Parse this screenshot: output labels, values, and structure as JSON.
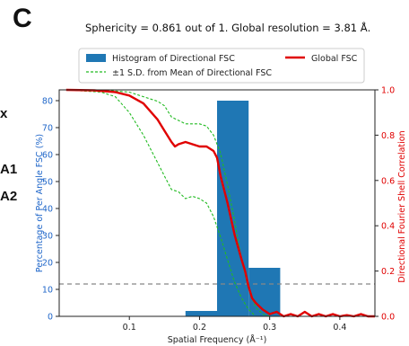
{
  "panel_letter": "C",
  "edge_labels": [
    "x",
    "A1",
    "A2"
  ],
  "colors": {
    "histogram": "#1f77b4",
    "global_fsc": "#e00000",
    "sd_band": "#22bb22",
    "threshold": "#888888",
    "left_axis": "#1f66c9",
    "right_axis": "#e00000"
  },
  "chart_data": {
    "type": "bar",
    "title": "Sphericity = 0.861 out of 1. Global resolution = 3.81 Å.",
    "xlabel": "Spatial Frequency (Å⁻¹)",
    "ylabel": "Percentage of Per Angle FSC (%)",
    "y2label": "Directional Fourier Shell Correlation",
    "xlim": [
      0.0,
      0.45
    ],
    "ylim": [
      0,
      84
    ],
    "y2lim": [
      0,
      1.0
    ],
    "x_ticks": [
      "0.1",
      "0.2",
      "0.3",
      "0.4"
    ],
    "x_tick_values": [
      0.1,
      0.2,
      0.3,
      0.4
    ],
    "y_ticks": [
      "0",
      "10",
      "20",
      "30",
      "40",
      "50",
      "60",
      "70",
      "80"
    ],
    "y_tick_values": [
      0,
      10,
      20,
      30,
      40,
      50,
      60,
      70,
      80
    ],
    "y2_ticks": [
      "0.0",
      "0.2",
      "0.4",
      "0.6",
      "0.8",
      "1.0"
    ],
    "y2_tick_values": [
      0.0,
      0.2,
      0.4,
      0.6,
      0.8,
      1.0
    ],
    "legend": {
      "placement": "top",
      "entries": [
        {
          "label": "Histogram of Directional FSC",
          "style": "bar"
        },
        {
          "label": "±1 S.D. from Mean of Directional FSC",
          "style": "dashed"
        },
        {
          "label": "Global FSC",
          "style": "line"
        }
      ]
    },
    "histogram": {
      "bin_edges": [
        0.18,
        0.225,
        0.27,
        0.315
      ],
      "values": [
        2,
        80,
        18
      ]
    },
    "global_fsc": {
      "x": [
        0.01,
        0.05,
        0.08,
        0.1,
        0.12,
        0.14,
        0.15,
        0.16,
        0.165,
        0.17,
        0.18,
        0.19,
        0.2,
        0.21,
        0.215,
        0.22,
        0.225,
        0.23,
        0.24,
        0.25,
        0.26,
        0.265,
        0.27,
        0.275,
        0.28,
        0.29,
        0.3,
        0.31,
        0.32,
        0.33,
        0.34,
        0.35,
        0.36,
        0.37,
        0.38,
        0.39,
        0.4,
        0.41,
        0.42,
        0.43,
        0.44,
        0.45
      ],
      "y": [
        1.0,
        0.998,
        0.99,
        0.975,
        0.94,
        0.87,
        0.82,
        0.77,
        0.75,
        0.76,
        0.77,
        0.76,
        0.75,
        0.75,
        0.74,
        0.73,
        0.7,
        0.62,
        0.5,
        0.36,
        0.25,
        0.2,
        0.13,
        0.08,
        0.06,
        0.03,
        0.01,
        0.02,
        0.0,
        0.01,
        0.0,
        0.02,
        0.0,
        0.01,
        0.0,
        0.01,
        0.0,
        0.005,
        0.0,
        0.01,
        0.0,
        0.0
      ]
    },
    "sd_upper": {
      "x": [
        0.01,
        0.06,
        0.1,
        0.12,
        0.14,
        0.15,
        0.16,
        0.18,
        0.2,
        0.21,
        0.22,
        0.23,
        0.24,
        0.25,
        0.26,
        0.27,
        0.28,
        0.29,
        0.3
      ],
      "y": [
        1.0,
        1.0,
        0.99,
        0.97,
        0.95,
        0.93,
        0.88,
        0.85,
        0.85,
        0.84,
        0.8,
        0.72,
        0.58,
        0.42,
        0.25,
        0.12,
        0.04,
        0.01,
        0.0
      ]
    },
    "sd_lower": {
      "x": [
        0.01,
        0.06,
        0.08,
        0.1,
        0.12,
        0.14,
        0.15,
        0.16,
        0.17,
        0.18,
        0.19,
        0.2,
        0.21,
        0.22,
        0.23,
        0.24,
        0.25,
        0.26,
        0.27,
        0.28
      ],
      "y": [
        1.0,
        0.99,
        0.97,
        0.9,
        0.8,
        0.68,
        0.62,
        0.56,
        0.55,
        0.52,
        0.53,
        0.52,
        0.5,
        0.44,
        0.35,
        0.25,
        0.15,
        0.08,
        0.03,
        0.0
      ]
    },
    "threshold": {
      "y2": 0.143,
      "style": "dashed"
    }
  }
}
